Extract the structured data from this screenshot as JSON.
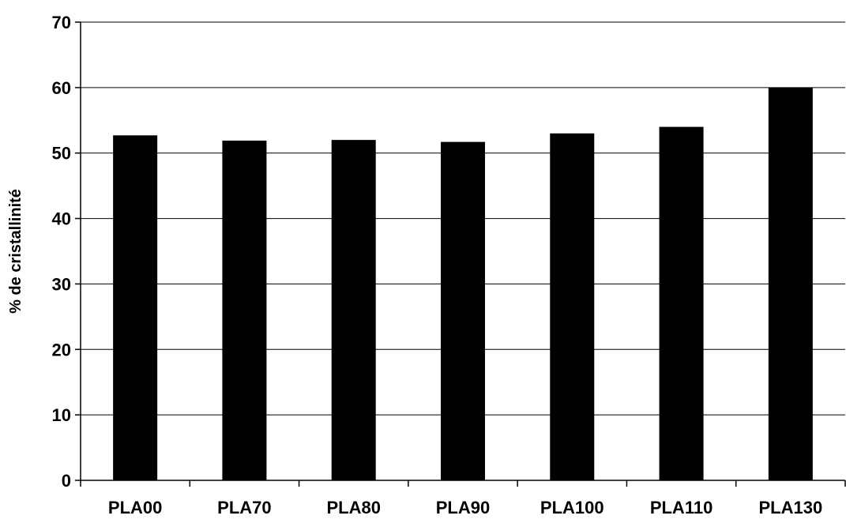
{
  "chart_data": {
    "type": "bar",
    "title": "",
    "xlabel": "",
    "ylabel": "% de cristallinité",
    "categories": [
      "PLA00",
      "PLA70",
      "PLA80",
      "PLA90",
      "PLA100",
      "PLA110",
      "PLA130"
    ],
    "values": [
      52.7,
      51.9,
      52.0,
      51.7,
      53.0,
      54.0,
      60.0
    ],
    "ylim": [
      0,
      70
    ],
    "yticks": [
      0,
      10,
      20,
      30,
      40,
      50,
      60,
      70
    ],
    "grid": true,
    "legend": "none",
    "bar_color": "#000000",
    "grid_color": "#000000"
  }
}
